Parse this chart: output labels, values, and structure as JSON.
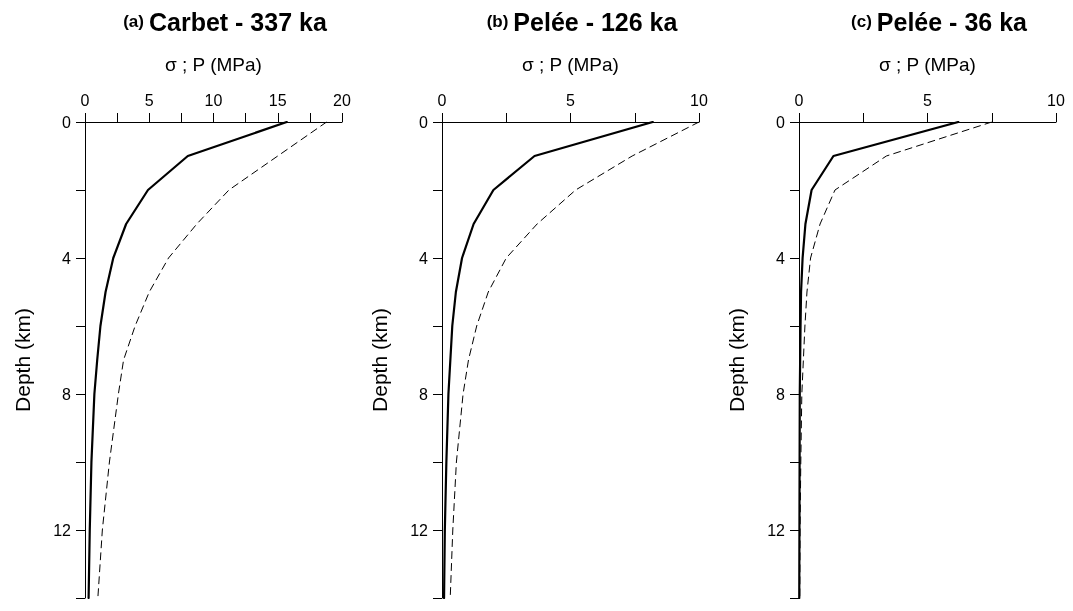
{
  "chart_data": [
    {
      "type": "line",
      "title": "(a) Carbet - 337 ka",
      "xlabel": "σ ; P (MPa)",
      "ylabel": "Depth (km)",
      "xlim": [
        0,
        20
      ],
      "xticks": [
        0,
        {
          "value": 2.5,
          "label": null
        },
        5,
        {
          "value": 7.5,
          "label": null
        },
        10,
        {
          "value": 12.5,
          "label": null
        },
        15,
        {
          "value": 17.5,
          "label": null
        },
        20
      ],
      "ylim": [
        14,
        0
      ],
      "yticks": [
        0,
        {
          "value": 2,
          "label": null
        },
        4,
        {
          "value": 6,
          "label": null
        },
        8,
        {
          "value": 10,
          "label": null
        },
        12,
        {
          "value": 14,
          "label": null
        }
      ],
      "grid": false,
      "marker": "none",
      "series": [
        {
          "color": "#000000",
          "line_style": "solid",
          "x": [
            15.7,
            8.0,
            4.9,
            3.2,
            2.2,
            1.6,
            1.2,
            0.95,
            0.73,
            0.5,
            0.37,
            0.28
          ],
          "values": [
            0,
            1,
            2,
            3,
            4,
            5,
            6,
            7,
            8,
            10,
            12,
            14
          ]
        },
        {
          "color": "#000000",
          "line_style": "dashed",
          "x": [
            18.8,
            15.0,
            11.2,
            8.7,
            6.5,
            5.0,
            3.9,
            3.0,
            2.6,
            1.9,
            1.35,
            1.0
          ],
          "values": [
            0,
            1,
            2,
            3,
            4,
            5,
            6,
            7,
            8,
            10,
            12,
            14
          ]
        }
      ]
    },
    {
      "type": "line",
      "title": "(b) Pelée - 126 ka",
      "xlabel": "σ ; P (MPa)",
      "ylabel": "Depth (km)",
      "xlim": [
        0,
        10
      ],
      "xticks": [
        0,
        {
          "value": 2.5,
          "label": null
        },
        5,
        {
          "value": 7.5,
          "label": null
        },
        10
      ],
      "ylim": [
        14,
        0
      ],
      "yticks": [
        0,
        {
          "value": 2,
          "label": null
        },
        4,
        {
          "value": 6,
          "label": null
        },
        8,
        {
          "value": 10,
          "label": null
        },
        12,
        {
          "value": 14,
          "label": null
        }
      ],
      "grid": false,
      "marker": "none",
      "series": [
        {
          "color": "#000000",
          "line_style": "solid",
          "x": [
            8.2,
            3.6,
            2.0,
            1.23,
            0.78,
            0.54,
            0.4,
            0.25,
            0.17,
            0.11,
            0.08
          ],
          "values": [
            0,
            1,
            2,
            3,
            4,
            5,
            6,
            8,
            10,
            12,
            14
          ]
        },
        {
          "color": "#000000",
          "line_style": "dashed",
          "x": [
            10.0,
            7.4,
            5.2,
            3.7,
            2.5,
            1.8,
            1.35,
            1.03,
            0.82,
            0.56,
            0.42,
            0.32
          ],
          "values": [
            0,
            1,
            2,
            3,
            4,
            5,
            6,
            7,
            8,
            10,
            12,
            14
          ]
        }
      ]
    },
    {
      "type": "line",
      "title": "(c) Pelée - 36 ka",
      "xlabel": "σ ; P (MPa)",
      "ylabel": "Depth (km)",
      "xlim": [
        0,
        10
      ],
      "xticks": [
        0,
        {
          "value": 2.5,
          "label": null
        },
        5,
        {
          "value": 7.5,
          "label": null
        },
        10
      ],
      "ylim": [
        14,
        0
      ],
      "yticks": [
        0,
        {
          "value": 2,
          "label": null
        },
        4,
        {
          "value": 6,
          "label": null
        },
        8,
        {
          "value": 10,
          "label": null
        },
        12,
        {
          "value": 14,
          "label": null
        }
      ],
      "grid": false,
      "marker": "none",
      "series": [
        {
          "color": "#000000",
          "line_style": "solid",
          "x": [
            6.2,
            1.34,
            0.49,
            0.25,
            0.14,
            0.08,
            0.06,
            0.03,
            0.01
          ],
          "values": [
            0,
            1,
            2,
            3,
            4,
            5,
            6,
            8,
            14
          ]
        },
        {
          "color": "#000000",
          "line_style": "dashed",
          "x": [
            7.5,
            3.4,
            1.4,
            0.82,
            0.45,
            0.31,
            0.23,
            0.11,
            0.07,
            0.04,
            0.03
          ],
          "values": [
            0,
            1,
            2,
            3,
            4,
            5,
            6,
            8,
            10,
            12,
            14
          ]
        }
      ]
    }
  ]
}
